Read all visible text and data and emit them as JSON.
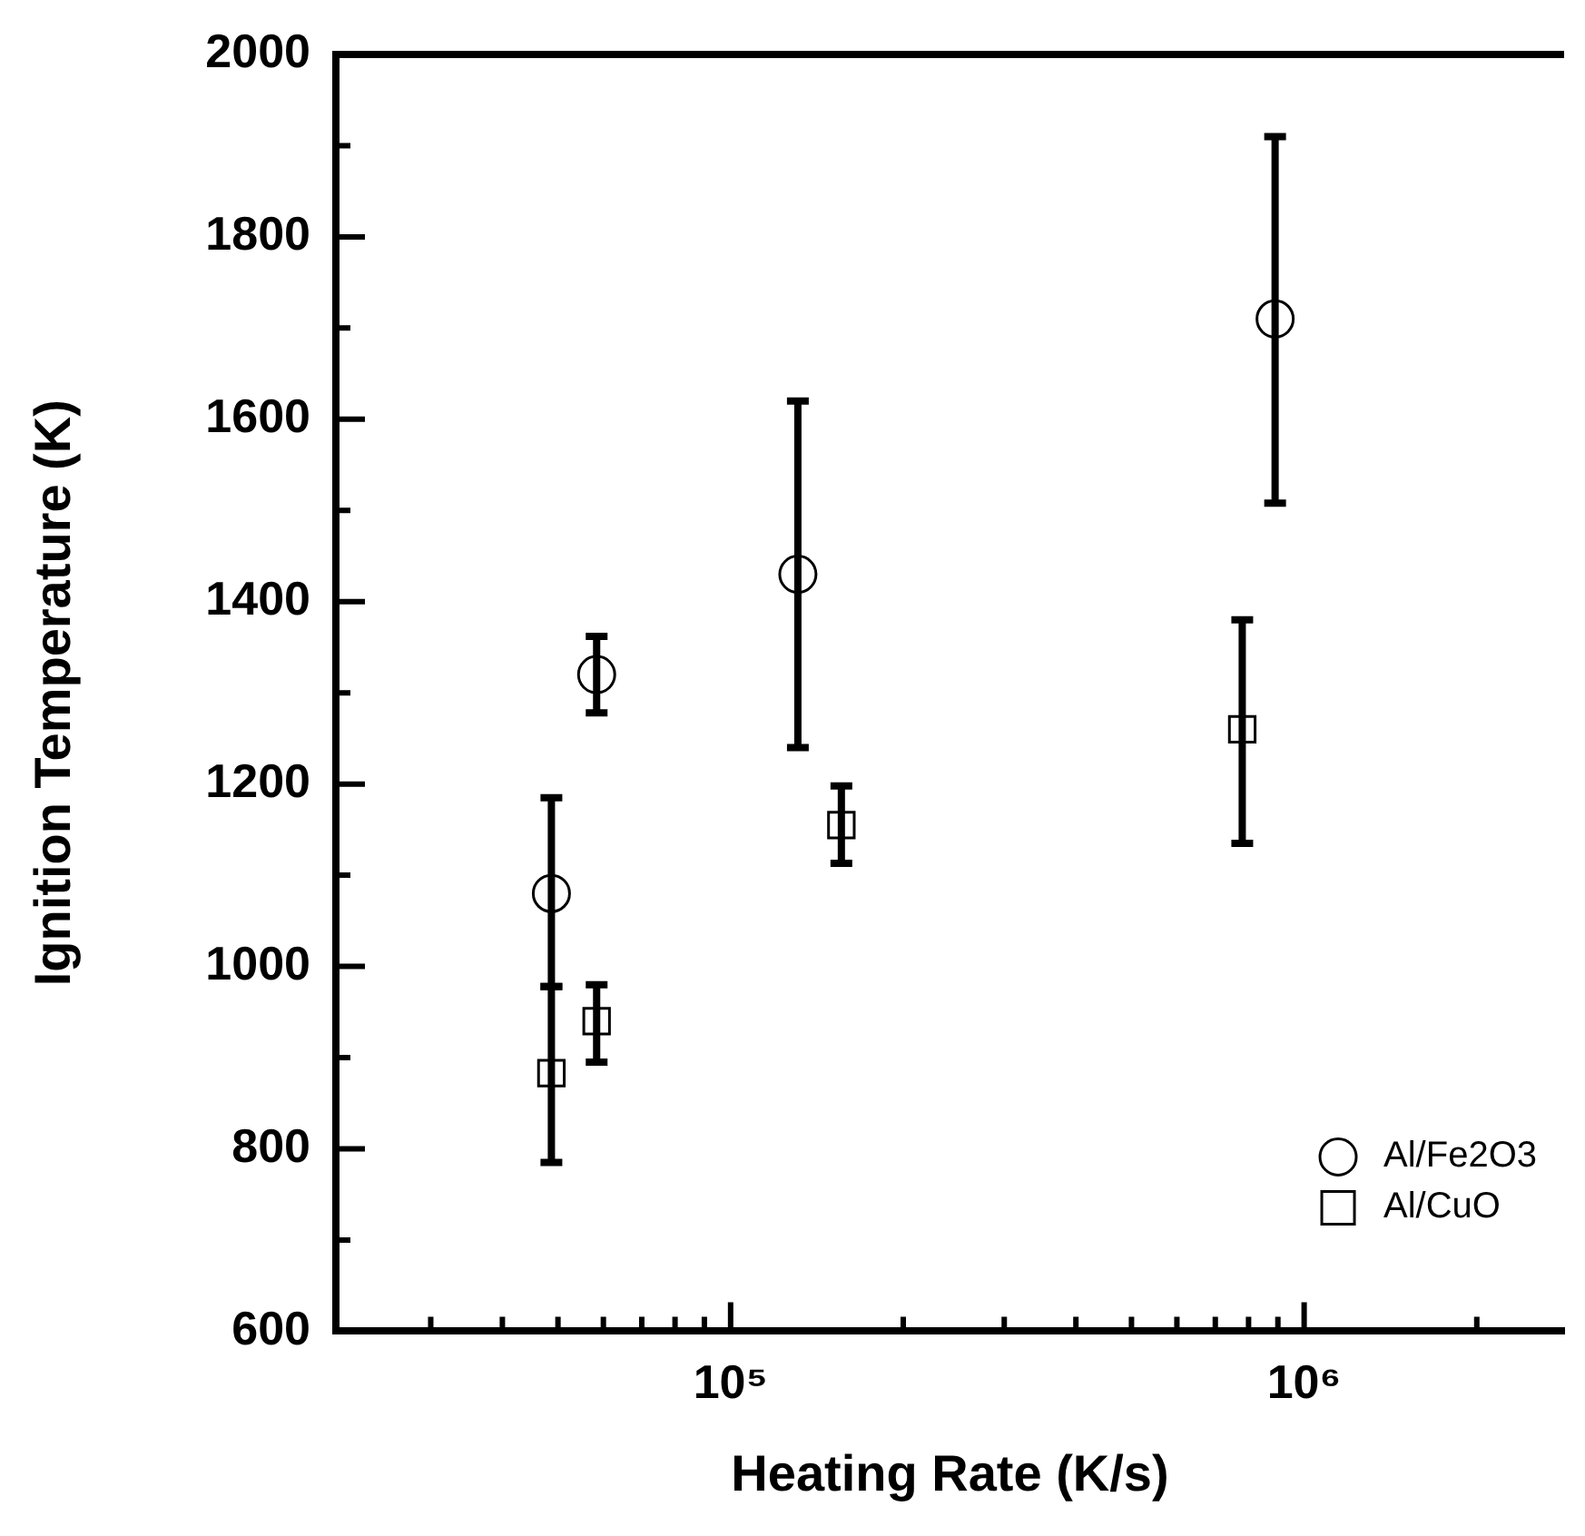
{
  "chart_data": {
    "type": "scatter",
    "xlabel": "Heating Rate (K/s)",
    "ylabel": "Ignition Temperature (K)",
    "log": "x",
    "grid": false,
    "legend": "bottom right",
    "xlim": [
      20500,
      2840000
    ],
    "xticks": [
      {
        "value": 30000,
        "label": null
      },
      {
        "value": 40000,
        "label": null
      },
      {
        "value": 50000,
        "label": null
      },
      {
        "value": 60000,
        "label": null
      },
      {
        "value": 70000,
        "label": null
      },
      {
        "value": 80000,
        "label": null
      },
      {
        "value": 90000,
        "label": null
      },
      {
        "value": 100000,
        "label": "10⁵"
      },
      {
        "value": 200000,
        "label": null
      },
      {
        "value": 300000,
        "label": null
      },
      {
        "value": 400000,
        "label": null
      },
      {
        "value": 500000,
        "label": null
      },
      {
        "value": 600000,
        "label": null
      },
      {
        "value": 700000,
        "label": null
      },
      {
        "value": 800000,
        "label": null
      },
      {
        "value": 900000,
        "label": null
      },
      {
        "value": 1000000,
        "label": "10⁶"
      },
      {
        "value": 2000000,
        "label": null
      }
    ],
    "ylim": [
      600,
      2000
    ],
    "yticks": [
      600,
      {
        "value": 700,
        "label": null
      },
      800,
      {
        "value": 900,
        "label": null
      },
      1000,
      {
        "value": 1100,
        "label": null
      },
      1200,
      {
        "value": 1300,
        "label": null
      },
      1400,
      {
        "value": 1500,
        "label": null
      },
      1600,
      {
        "value": 1700,
        "label": null
      },
      1800,
      {
        "value": 1900,
        "label": null
      },
      2000
    ],
    "series": [
      {
        "name": "Al/Fe2O3",
        "color": "#000000",
        "marker": "circle",
        "x": [
          48700,
          58400,
          131000,
          890000
        ],
        "values": [
          1080,
          1320,
          1430,
          1710
        ],
        "errors": [
          [
            978,
            1185
          ],
          [
            1278,
            1362
          ],
          [
            1240,
            1620
          ],
          [
            1508,
            1910
          ]
        ]
      },
      {
        "name": "Al/CuO",
        "color": "#000000",
        "marker": "square",
        "x": [
          48700,
          58400,
          156000,
          780000
        ],
        "values": [
          883,
          940,
          1155,
          1260
        ],
        "errors": [
          [
            785,
            978
          ],
          [
            895,
            980
          ],
          [
            1113,
            1198
          ],
          [
            1135,
            1380
          ]
        ]
      }
    ]
  }
}
